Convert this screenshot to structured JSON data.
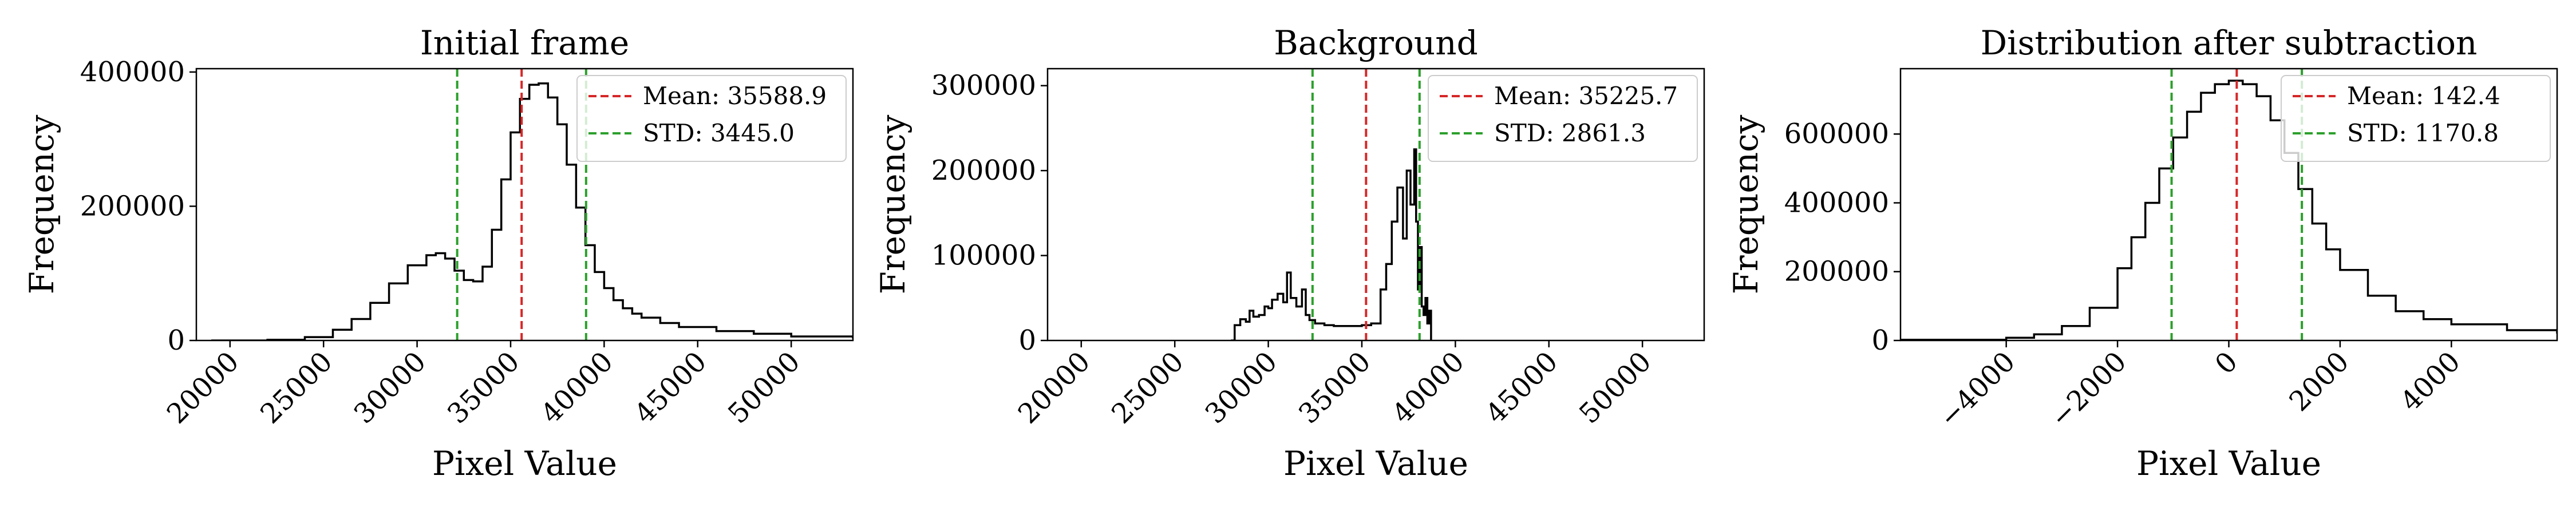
{
  "colors": {
    "histogram": "#000000",
    "mean_line": "#d62728",
    "std_line": "#2ca02c",
    "frame": "#000000",
    "background": "#ffffff"
  },
  "chart_data": [
    {
      "type": "step",
      "title": "Initial frame",
      "xlabel": "Pixel Value",
      "ylabel": "Frequency",
      "xlim": [
        18200,
        53300
      ],
      "ylim": [
        0,
        405000
      ],
      "xticks": [
        20000,
        25000,
        30000,
        35000,
        40000,
        45000,
        50000
      ],
      "xtick_labels": [
        "20000",
        "25000",
        "30000",
        "35000",
        "40000",
        "45000",
        "50000"
      ],
      "yticks": [
        0,
        200000,
        400000
      ],
      "ytick_labels": [
        "0",
        "200000",
        "400000"
      ],
      "x_tick_rotation": 45,
      "grid": false,
      "legend_position": "top-right",
      "series": {
        "x": [
          19000,
          22000,
          24000,
          25500,
          26500,
          27500,
          28500,
          29500,
          30500,
          31000,
          31500,
          32000,
          32500,
          33000,
          33500,
          34000,
          34500,
          35000,
          35500,
          36000,
          36500,
          37000,
          37500,
          38000,
          38500,
          39000,
          39500,
          40000,
          40500,
          41000,
          41500,
          42000,
          43000,
          44000,
          46000,
          48000,
          50000,
          53300
        ],
        "y": [
          0,
          1000,
          5000,
          16000,
          32000,
          56000,
          85000,
          112000,
          127000,
          130000,
          122000,
          104000,
          90000,
          88000,
          110000,
          165000,
          240000,
          310000,
          360000,
          381000,
          383000,
          362000,
          322000,
          262000,
          198000,
          142000,
          102000,
          78000,
          60000,
          48000,
          40000,
          34000,
          26000,
          20000,
          14000,
          10000,
          6000,
          3000
        ]
      },
      "vlines": [
        {
          "name": "Mean: 35588.9",
          "x": 35588.9,
          "role": "mean"
        },
        {
          "name": "STD: 3445.0",
          "x": 32143.9,
          "role": "std"
        },
        {
          "name": "STD: 3445.0",
          "x": 39033.9,
          "role": "std"
        }
      ],
      "legend": [
        {
          "label": "Mean: 35588.9",
          "role": "mean"
        },
        {
          "label": "STD: 3445.0",
          "role": "std"
        }
      ]
    },
    {
      "type": "step",
      "title": "Background",
      "xlabel": "Pixel Value",
      "ylabel": "Frequency",
      "xlim": [
        18200,
        53300
      ],
      "ylim": [
        0,
        320000
      ],
      "xticks": [
        20000,
        25000,
        30000,
        35000,
        40000,
        45000,
        50000
      ],
      "xtick_labels": [
        "20000",
        "25000",
        "30000",
        "35000",
        "40000",
        "45000",
        "50000"
      ],
      "yticks": [
        0,
        100000,
        200000,
        300000
      ],
      "ytick_labels": [
        "0",
        "100000",
        "200000",
        "300000"
      ],
      "x_tick_rotation": 45,
      "grid": false,
      "legend_position": "top-right",
      "series": {
        "x": [
          28000,
          28200,
          28500,
          28800,
          29000,
          29200,
          29500,
          29800,
          30000,
          30200,
          30500,
          30800,
          31000,
          31200,
          31500,
          31800,
          32000,
          32200,
          32500,
          33000,
          33500,
          34000,
          34500,
          35000,
          35500,
          36000,
          36300,
          36600,
          36900,
          37200,
          37400,
          37600,
          37800,
          37900,
          38000,
          38100,
          38200,
          38300,
          38400,
          38500,
          38600,
          38700
        ],
        "y": [
          0,
          18000,
          25000,
          22000,
          35000,
          28000,
          30000,
          40000,
          38000,
          48000,
          55000,
          45000,
          80000,
          50000,
          40000,
          60000,
          30000,
          24000,
          20000,
          18000,
          17000,
          17000,
          17000,
          18000,
          20000,
          60000,
          90000,
          140000,
          180000,
          120000,
          200000,
          160000,
          225000,
          140000,
          60000,
          110000,
          40000,
          30000,
          50000,
          20000,
          35000,
          0
        ]
      },
      "vlines": [
        {
          "name": "Mean: 35225.7",
          "x": 35225.7,
          "role": "mean"
        },
        {
          "name": "STD: 2861.3",
          "x": 32364.4,
          "role": "std"
        },
        {
          "name": "STD: 2861.3",
          "x": 38087.0,
          "role": "std"
        }
      ],
      "legend": [
        {
          "label": "Mean: 35225.7",
          "role": "mean"
        },
        {
          "label": "STD: 2861.3",
          "role": "std"
        }
      ]
    },
    {
      "type": "step",
      "title": "Distribution after subtraction",
      "xlabel": "Pixel Value",
      "ylabel": "Frequency",
      "xlim": [
        -5900,
        5900
      ],
      "ylim": [
        0,
        790000
      ],
      "xticks": [
        -4000,
        -2000,
        0,
        2000,
        4000
      ],
      "xtick_labels": [
        "−4000",
        "−2000",
        "0",
        "2000",
        "4000"
      ],
      "yticks": [
        0,
        200000,
        400000,
        600000
      ],
      "ytick_labels": [
        "0",
        "200000",
        "400000",
        "600000"
      ],
      "x_tick_rotation": 45,
      "grid": false,
      "legend_position": "top-right",
      "series": {
        "x": [
          -5900,
          -4000,
          -3500,
          -3000,
          -2500,
          -2000,
          -1750,
          -1500,
          -1250,
          -1000,
          -750,
          -500,
          -250,
          0,
          250,
          500,
          750,
          1000,
          1250,
          1500,
          1750,
          2000,
          2500,
          3000,
          3500,
          4000,
          5000,
          5900
        ],
        "y": [
          2000,
          8000,
          18000,
          42000,
          95000,
          210000,
          300000,
          400000,
          500000,
          590000,
          665000,
          720000,
          745000,
          755000,
          745000,
          710000,
          640000,
          545000,
          440000,
          340000,
          265000,
          205000,
          130000,
          85000,
          62000,
          47000,
          30000,
          20000
        ]
      },
      "vlines": [
        {
          "name": "Mean: 142.4",
          "x": 142.4,
          "role": "mean"
        },
        {
          "name": "STD: 1170.8",
          "x": -1028.4,
          "role": "std"
        },
        {
          "name": "STD: 1170.8",
          "x": 1313.2,
          "role": "std"
        }
      ],
      "legend": [
        {
          "label": "Mean: 142.4",
          "role": "mean"
        },
        {
          "label": "STD: 1170.8",
          "role": "std"
        }
      ]
    }
  ]
}
